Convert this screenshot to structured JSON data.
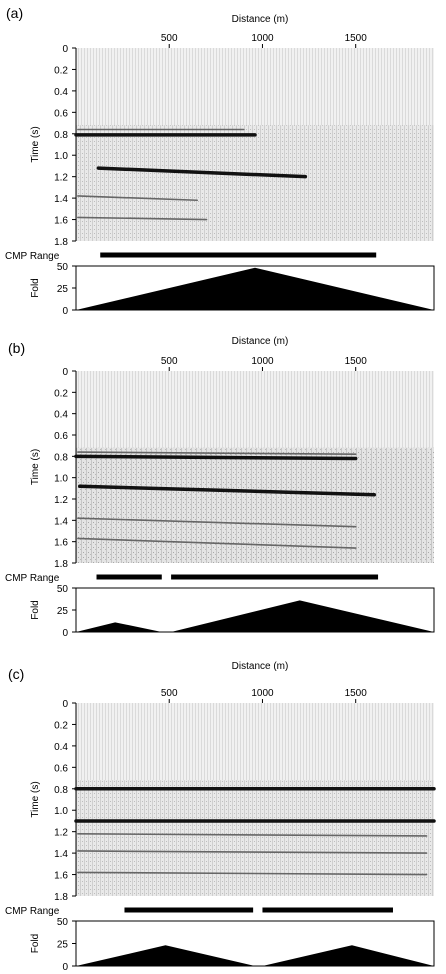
{
  "panels": [
    {
      "label": "(a)",
      "distance_label": "Distance (m)",
      "distance_ticks": [
        "500",
        "1000",
        "1500"
      ],
      "time_label": "Time (s)",
      "time_ticks": [
        "0",
        "0.2",
        "0.4",
        "0.6",
        "0.8",
        "1.0",
        "1.2",
        "1.4",
        "1.6",
        "1.8"
      ],
      "cmp_label": "CMP Range",
      "fold_label": "Fold",
      "fold_ticks": [
        "50",
        "25",
        "0"
      ],
      "reflectors": [
        {
          "x": [
            0,
            960
          ],
          "t": [
            0.81,
            0.81
          ],
          "strength": "strong"
        },
        {
          "x": [
            120,
            1230
          ],
          "t": [
            1.12,
            1.2
          ],
          "strength": "strong"
        },
        {
          "x": [
            10,
            700
          ],
          "t": [
            1.58,
            1.6
          ],
          "strength": "weak"
        },
        {
          "x": [
            10,
            650
          ],
          "t": [
            1.38,
            1.42
          ],
          "strength": "weak"
        },
        {
          "x": [
            10,
            900
          ],
          "t": [
            0.76,
            0.76
          ],
          "strength": "weak"
        }
      ],
      "cmp_ranges_m": [
        [
          130,
          1610
        ]
      ],
      "fold_profile": {
        "x_m": [
          0,
          960,
          1920
        ],
        "fold": [
          0,
          48,
          0
        ]
      }
    },
    {
      "label": "(b)",
      "distance_label": "Distance (m)",
      "distance_ticks": [
        "500",
        "1000",
        "1500"
      ],
      "time_label": "Time (s)",
      "time_ticks": [
        "0",
        "0.2",
        "0.4",
        "0.6",
        "0.8",
        "1.0",
        "1.2",
        "1.4",
        "1.6",
        "1.8"
      ],
      "cmp_label": "CMP Range",
      "fold_label": "Fold",
      "fold_ticks": [
        "50",
        "25",
        "0"
      ],
      "reflectors": [
        {
          "x": [
            0,
            1500
          ],
          "t": [
            0.8,
            0.82
          ],
          "strength": "strong"
        },
        {
          "x": [
            20,
            1600
          ],
          "t": [
            1.08,
            1.16
          ],
          "strength": "strong"
        },
        {
          "x": [
            10,
            1500
          ],
          "t": [
            1.57,
            1.66
          ],
          "strength": "weak"
        },
        {
          "x": [
            10,
            1500
          ],
          "t": [
            1.38,
            1.46
          ],
          "strength": "weak"
        },
        {
          "x": [
            10,
            1500
          ],
          "t": [
            0.76,
            0.78
          ],
          "strength": "weak"
        }
      ],
      "cmp_ranges_m": [
        [
          110,
          460
        ],
        [
          510,
          1620
        ]
      ],
      "fold_profile": {
        "x_m": [
          0,
          210,
          460,
          510,
          1200,
          1920
        ],
        "fold": [
          0,
          11,
          0,
          0,
          36,
          0
        ]
      }
    },
    {
      "label": "(c)",
      "distance_label": "Distance (m)",
      "distance_ticks": [
        "500",
        "1000",
        "1500"
      ],
      "time_label": "Time (s)",
      "time_ticks": [
        "0",
        "0.2",
        "0.4",
        "0.6",
        "0.8",
        "1.0",
        "1.2",
        "1.4",
        "1.6",
        "1.8"
      ],
      "cmp_label": "CMP Range",
      "fold_label": "Fold",
      "fold_ticks": [
        "50",
        "25",
        "0"
      ],
      "reflectors": [
        {
          "x": [
            0,
            1920
          ],
          "t": [
            0.8,
            0.8
          ],
          "strength": "strong"
        },
        {
          "x": [
            0,
            1920
          ],
          "t": [
            1.1,
            1.1
          ],
          "strength": "strong"
        },
        {
          "x": [
            10,
            1880
          ],
          "t": [
            1.58,
            1.6
          ],
          "strength": "weak"
        },
        {
          "x": [
            10,
            1880
          ],
          "t": [
            1.38,
            1.4
          ],
          "strength": "weak"
        },
        {
          "x": [
            10,
            1880
          ],
          "t": [
            1.22,
            1.24
          ],
          "strength": "weak"
        }
      ],
      "cmp_ranges_m": [
        [
          260,
          950
        ],
        [
          1000,
          1700
        ]
      ],
      "fold_profile": {
        "x_m": [
          0,
          480,
          960,
          1000,
          1480,
          1920
        ],
        "fold": [
          0,
          23,
          0,
          0,
          23,
          0
        ]
      }
    }
  ]
}
